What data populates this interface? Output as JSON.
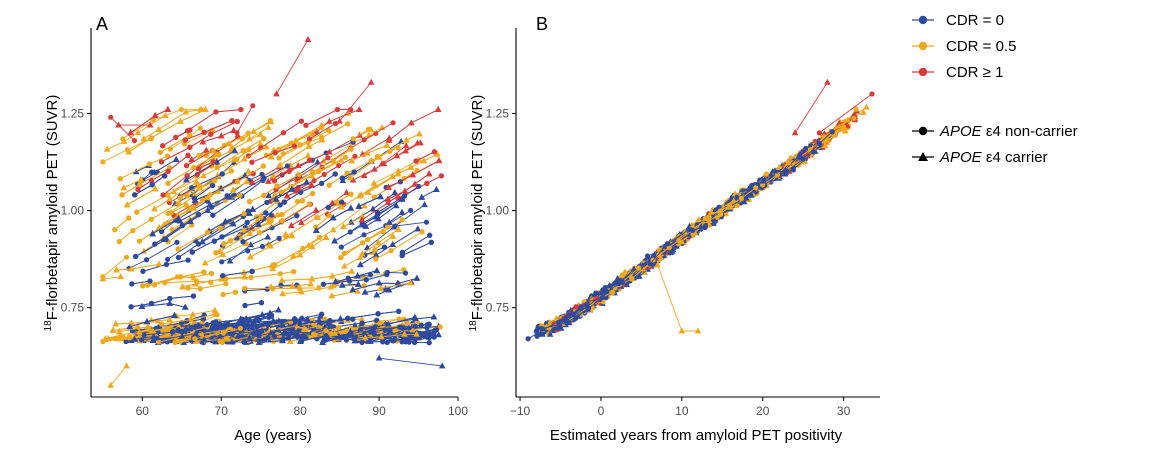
{
  "chart_data": [
    {
      "type": "scatter",
      "panel": "A",
      "xlabel": "Age (years)",
      "ylabel_sup": "18",
      "ylabel": "F-florbetapir amyloid PET (SUVR)",
      "xticks": [
        60,
        70,
        80,
        90,
        100
      ],
      "yticks": [
        0.75,
        1.0,
        1.25
      ],
      "ytick_labels": [
        "0.75",
        "1.00",
        "1.25"
      ],
      "xlim": [
        53.5,
        100
      ],
      "ylim": [
        0.52,
        1.47
      ],
      "series": [
        {
          "name": "CDR = 0",
          "color": "#2E4A9E",
          "description": "dense cloud of trajectories mostly between 0.60 and 1.15 SUVR, ages 58-98"
        },
        {
          "name": "CDR = 0.5",
          "color": "#F0A81C",
          "description": "trajectories spread across 0.60-1.25 SUVR, ages 55-95"
        },
        {
          "name": "CDR ≥ 1",
          "color": "#D93B3B",
          "description": "fewer trajectories, mostly above 1.00 SUVR"
        }
      ],
      "example_trajectories": [
        {
          "series": 2,
          "points": [
            [
              77,
              1.3
            ],
            [
              81,
              1.44
            ]
          ]
        },
        {
          "series": 2,
          "points": [
            [
              72,
              1.2
            ],
            [
              74,
              1.27
            ]
          ]
        },
        {
          "series": 2,
          "points": [
            [
              89,
              1.33
            ],
            [
              85,
              1.23
            ]
          ]
        },
        {
          "series": 2,
          "points": [
            [
              56,
              1.24
            ],
            [
              59,
              1.18
            ]
          ]
        },
        {
          "series": 2,
          "points": [
            [
              57,
              1.22
            ],
            [
              61,
              1.22
            ]
          ]
        },
        {
          "series": 0,
          "points": [
            [
              92,
              0.96
            ],
            [
              96,
              0.97
            ]
          ]
        },
        {
          "series": 0,
          "points": [
            [
              90,
              0.62
            ],
            [
              98,
              0.6
            ]
          ]
        },
        {
          "series": 1,
          "points": [
            [
              55,
              0.83
            ],
            [
              58,
              0.88
            ]
          ]
        },
        {
          "series": 1,
          "points": [
            [
              56,
              0.55
            ],
            [
              58,
              0.6
            ]
          ]
        }
      ]
    },
    {
      "type": "scatter",
      "panel": "B",
      "xlabel": "Estimated years from amyloid PET positivity",
      "ylabel_sup": "18",
      "ylabel": "F-florbetapir amyloid PET (SUVR)",
      "xticks": [
        -10,
        0,
        10,
        20,
        30
      ],
      "xtick_labels": [
        "−10",
        "0",
        "10",
        "20",
        "30"
      ],
      "yticks": [
        0.75,
        1.0,
        1.25
      ],
      "ytick_labels": [
        "0.75",
        "1.00",
        "1.25"
      ],
      "xlim": [
        -10.5,
        34.5
      ],
      "ylim": [
        0.52,
        1.47
      ],
      "series": [
        {
          "name": "CDR = 0",
          "color": "#2E4A9E"
        },
        {
          "name": "CDR = 0.5",
          "color": "#F0A81C"
        },
        {
          "name": "CDR ≥ 1",
          "color": "#D93B3B"
        }
      ],
      "trend_curve": [
        [
          -9,
          0.68
        ],
        [
          -5,
          0.71
        ],
        [
          0,
          0.78
        ],
        [
          5,
          0.85
        ],
        [
          10,
          0.93
        ],
        [
          15,
          1.0
        ],
        [
          20,
          1.07
        ],
        [
          25,
          1.14
        ],
        [
          30,
          1.22
        ],
        [
          34,
          1.29
        ]
      ],
      "example_trajectories": [
        {
          "series": 2,
          "points": [
            [
              28,
              1.33
            ],
            [
              24,
              1.2
            ]
          ]
        },
        {
          "series": 2,
          "points": [
            [
              33.5,
              1.3
            ],
            [
              27,
              1.2
            ]
          ]
        },
        {
          "series": 1,
          "points": [
            [
              7,
              0.86
            ],
            [
              10,
              0.69
            ],
            [
              12,
              0.69
            ]
          ]
        },
        {
          "series": 0,
          "points": [
            [
              -9,
              0.67
            ],
            [
              -4,
              0.73
            ]
          ]
        }
      ]
    }
  ],
  "legend": {
    "cdr": [
      {
        "label": "CDR = 0",
        "color": "#2E4A9E"
      },
      {
        "label": "CDR = 0.5",
        "color": "#F0A81C"
      },
      {
        "label": "CDR ≥ 1",
        "color": "#D93B3B"
      }
    ],
    "apoe": [
      {
        "italic": "APOE",
        "label": " ε4 non-carrier",
        "shape": "circle"
      },
      {
        "italic": "APOE",
        "label": " ε4 carrier",
        "shape": "triangle"
      }
    ]
  }
}
